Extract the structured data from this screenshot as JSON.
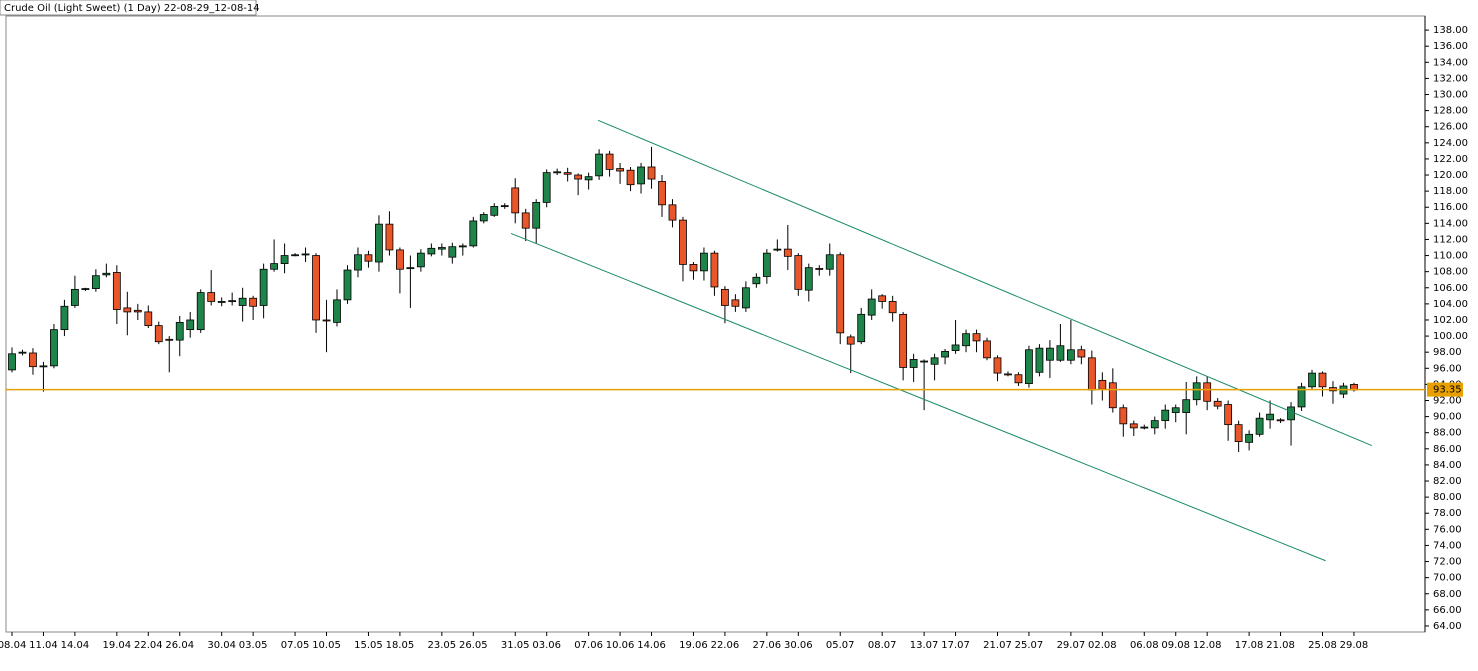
{
  "chart_data": {
    "type": "candlestick",
    "title": "Crude Oil (Light Sweet) (1 Day) 22-08-29_12-08-14",
    "categories": [
      "08.04",
      null,
      null,
      "11.04",
      null,
      null,
      "14.04",
      null,
      null,
      null,
      "19.04",
      null,
      null,
      "22.04",
      null,
      null,
      "26.04",
      null,
      null,
      null,
      "30.04",
      null,
      null,
      "03.05",
      null,
      null,
      null,
      "07.05",
      null,
      null,
      "10.05",
      null,
      null,
      null,
      "15.05",
      null,
      null,
      "18.05",
      null,
      null,
      null,
      "23.05",
      null,
      null,
      "26.05",
      null,
      null,
      null,
      "31.05",
      null,
      null,
      "03.06",
      null,
      null,
      null,
      "07.06",
      null,
      null,
      "10.06",
      null,
      null,
      "14.06",
      null,
      null,
      null,
      "19.06",
      null,
      null,
      "22.06",
      null,
      null,
      null,
      "27.06",
      null,
      null,
      "30.06",
      null,
      null,
      null,
      "05.07",
      null,
      null,
      null,
      "08.07",
      null,
      null,
      null,
      "13.07",
      null,
      null,
      "17.07",
      null,
      null,
      null,
      "21.07",
      null,
      null,
      "25.07",
      null,
      null,
      null,
      "29.07",
      null,
      null,
      "02.08",
      null,
      null,
      null,
      "06.08",
      null,
      null,
      "09.08",
      null,
      null,
      "12.08",
      null,
      null,
      null,
      "17.08",
      null,
      null,
      "21.08",
      null,
      null,
      null,
      "25.08",
      null,
      null,
      "29.08"
    ],
    "open": [
      95.8,
      97.9,
      97.9,
      96.2,
      96.3,
      100.8,
      103.8,
      105.8,
      105.9,
      107.6,
      107.9,
      103.5,
      103.2,
      103,
      101.3,
      99.6,
      99.5,
      100.8,
      100.8,
      105.4,
      104.3,
      104.3,
      103.8,
      104.7,
      103.8,
      108.3,
      109,
      110.1,
      110.1,
      110,
      102,
      101.7,
      104.5,
      108.2,
      110.1,
      109.2,
      113.9,
      110.7,
      108.4,
      108.6,
      110.2,
      110.8,
      109.8,
      111.1,
      111.2,
      114.3,
      115,
      116.2,
      118.4,
      115.3,
      113.4,
      116.6,
      120.4,
      120.3,
      120,
      119.4,
      119.9,
      122.6,
      120.8,
      120.6,
      118.9,
      121,
      119.2,
      116.3,
      114.4,
      108.9,
      108.1,
      110.3,
      105.8,
      104.5,
      103.5,
      106.5,
      107.4,
      110.7,
      110.8,
      110,
      105.7,
      108.4,
      108.3,
      110.1,
      99.9,
      99.3,
      102.6,
      105,
      104.3,
      102.7,
      96.1,
      96.9,
      96.5,
      97.4,
      98.2,
      98.8,
      100.3,
      99.4,
      97.3,
      95.3,
      95.2,
      94.1,
      95.5,
      97,
      97,
      97,
      98.3,
      97.3,
      94.5,
      94.2,
      91.1,
      89.1,
      88.7,
      88.6,
      89.5,
      90.5,
      90.5,
      92.1,
      94.2,
      91.9,
      91.5,
      89,
      86.8,
      87.8,
      89.6,
      89.6,
      89.6,
      91.2,
      93.7,
      95.4,
      93.6,
      92.8,
      94
    ],
    "high": [
      98.6,
      98.3,
      98.5,
      96.8,
      101.5,
      104.5,
      107.5,
      106,
      108.3,
      109,
      108.8,
      105.5,
      104,
      103.8,
      101.8,
      100,
      102.5,
      103,
      105.8,
      108.2,
      104.8,
      105.4,
      106,
      105,
      109,
      112,
      111.5,
      110.3,
      111,
      110.3,
      104.5,
      105.8,
      108.8,
      111,
      110.6,
      115,
      115.5,
      111,
      110,
      110.8,
      111.5,
      111.5,
      111.6,
      111.5,
      114.8,
      115.4,
      116.5,
      116.5,
      119.6,
      115.8,
      117,
      120.7,
      120.8,
      120.9,
      120.2,
      120.3,
      123.2,
      123,
      121.5,
      121,
      121.5,
      123.5,
      120,
      117,
      114.8,
      109.2,
      111,
      110.6,
      106.2,
      105.2,
      106.8,
      107.8,
      110.8,
      112,
      113.8,
      110.3,
      109,
      108.8,
      111.5,
      110.4,
      100.2,
      103.5,
      105.8,
      105.2,
      105,
      103,
      97.8,
      97.1,
      97.8,
      98.4,
      102,
      100.8,
      100.8,
      99.8,
      97.6,
      95.6,
      95.5,
      98.8,
      99,
      99.5,
      101.5,
      102,
      98.8,
      98.2,
      95.5,
      96,
      91.5,
      89.5,
      89,
      90,
      91.5,
      91.5,
      94.3,
      95,
      95,
      92.3,
      92,
      89.5,
      88.3,
      90.5,
      92,
      89.8,
      91.8,
      94.2,
      95.8,
      95.6,
      94.4,
      94.2,
      94.2
    ],
    "low": [
      95.5,
      97.6,
      95.2,
      93.1,
      96,
      100,
      103.5,
      105.6,
      105.5,
      107.3,
      101.5,
      100.1,
      102,
      101,
      99,
      95.5,
      97.5,
      99.8,
      100.4,
      103.8,
      103.7,
      103.8,
      101.8,
      102,
      102.2,
      108,
      107.8,
      109.9,
      109.2,
      100.4,
      98,
      101.2,
      104,
      107.3,
      108.5,
      108,
      110,
      105.3,
      103.5,
      108,
      109.9,
      110,
      109,
      110,
      111,
      114,
      114.8,
      115.8,
      114,
      111.8,
      111.5,
      116,
      120,
      119.2,
      117.5,
      118.2,
      119.4,
      119.8,
      118.9,
      118,
      117.7,
      118.3,
      114.8,
      113.5,
      106.8,
      107,
      106.9,
      105,
      101.6,
      103,
      103,
      106,
      106.5,
      110.5,
      108.2,
      105,
      104.3,
      107.5,
      107.5,
      99,
      95.4,
      99,
      102,
      103.4,
      101.8,
      94.5,
      94.3,
      90.8,
      94.5,
      96.5,
      97.8,
      98,
      98,
      97,
      94.4,
      95,
      93.8,
      93.6,
      95,
      94.8,
      96.8,
      96.5,
      96.5,
      91.5,
      92,
      90.5,
      87.5,
      87.6,
      88.4,
      87.8,
      88.5,
      89.3,
      87.8,
      91.4,
      90.8,
      90.9,
      87,
      85.6,
      85.8,
      87.5,
      88.5,
      89.2,
      86.4,
      90.7,
      93.3,
      92.5,
      91.6,
      92.3,
      93.1
    ],
    "close": [
      97.8,
      98,
      96.2,
      96.3,
      100.8,
      103.7,
      105.8,
      105.9,
      107.5,
      107.8,
      103.3,
      103,
      103,
      101.3,
      99.3,
      99.5,
      101.7,
      102,
      105.4,
      104.3,
      104.3,
      104.4,
      104.7,
      103.7,
      108.3,
      109,
      110,
      110.1,
      110.2,
      102,
      101.9,
      104.5,
      108.2,
      110.1,
      109.3,
      113.9,
      110.7,
      108.3,
      108.5,
      110.3,
      110.9,
      111,
      111.1,
      111.2,
      114.3,
      115.1,
      116.1,
      116.2,
      115.3,
      113.4,
      116.6,
      120.3,
      120.4,
      120.1,
      119.5,
      119.8,
      122.6,
      120.7,
      120.5,
      118.8,
      121,
      119.5,
      116.3,
      114.4,
      108.9,
      108.1,
      110.3,
      106.1,
      103.8,
      103.7,
      106,
      107.3,
      110.3,
      110.8,
      109.9,
      105.8,
      108.5,
      108.3,
      110.1,
      100.4,
      99,
      102.7,
      104.6,
      104.3,
      102.9,
      96.1,
      97.1,
      96.9,
      97.3,
      98.1,
      98.9,
      100.3,
      99.4,
      97.3,
      95.4,
      95.2,
      94.2,
      98.3,
      98.5,
      98.5,
      98.8,
      98.3,
      97.4,
      93.3,
      93.4,
      91.1,
      89.1,
      88.6,
      88.7,
      89.5,
      90.8,
      91.1,
      92.1,
      94.2,
      91.9,
      91.3,
      89,
      86.9,
      87.8,
      89.8,
      90.3,
      89.5,
      91.2,
      93.7,
      95.4,
      93.7,
      93.2,
      93.8,
      93.3
    ],
    "up_color": "#1e8449",
    "down_color": "#e8562a",
    "ylim": [
      63.25,
      139.75
    ],
    "yticks": [
      {
        "value": 64,
        "label": "64.00"
      },
      {
        "value": 66,
        "label": "66.00"
      },
      {
        "value": 68,
        "label": "68.00"
      },
      {
        "value": 70,
        "label": "70.00"
      },
      {
        "value": 72,
        "label": "72.00"
      },
      {
        "value": 74,
        "label": "74.00"
      },
      {
        "value": 76,
        "label": "76.00"
      },
      {
        "value": 78,
        "label": "78.00"
      },
      {
        "value": 80,
        "label": "80.00"
      },
      {
        "value": 82,
        "label": "82.00"
      },
      {
        "value": 84,
        "label": "84.00"
      },
      {
        "value": 86,
        "label": "86.00"
      },
      {
        "value": 88,
        "label": "88.00"
      },
      {
        "value": 90,
        "label": "90.00"
      },
      {
        "value": 92,
        "label": "92.00"
      },
      {
        "value": 94,
        "label": "94.00"
      },
      {
        "value": 96,
        "label": "96.00"
      },
      {
        "value": 98,
        "label": "98.00"
      },
      {
        "value": 100,
        "label": "100.00"
      },
      {
        "value": 102,
        "label": "102.00"
      },
      {
        "value": 104,
        "label": "104.00"
      },
      {
        "value": 106,
        "label": "106.00"
      },
      {
        "value": 108,
        "label": "108.00"
      },
      {
        "value": 110,
        "label": "110.00"
      },
      {
        "value": 112,
        "label": "112.00"
      },
      {
        "value": 114,
        "label": "114.00"
      },
      {
        "value": 116,
        "label": "116.00"
      },
      {
        "value": 118,
        "label": "118.00"
      },
      {
        "value": 120,
        "label": "120.00"
      },
      {
        "value": 122,
        "label": "122.00"
      },
      {
        "value": 124,
        "label": "124.00"
      },
      {
        "value": 126,
        "label": "126.00"
      },
      {
        "value": 128,
        "label": "128.00"
      },
      {
        "value": 130,
        "label": "130.00"
      },
      {
        "value": 132,
        "label": "132.00"
      },
      {
        "value": 134,
        "label": "134.00"
      },
      {
        "value": 136,
        "label": "136.00"
      },
      {
        "value": 138,
        "label": "138.00"
      }
    ],
    "price_line": 93.35,
    "price_line_color": "#e8a000",
    "trendlines": [
      {
        "x": [
          55.9,
          129.7
        ],
        "y": [
          126.8,
          86.4
        ]
      },
      {
        "x": [
          47.6,
          125.3
        ],
        "y": [
          112.75,
          72.1
        ]
      }
    ],
    "trendline_color": "#1a8a6a"
  }
}
